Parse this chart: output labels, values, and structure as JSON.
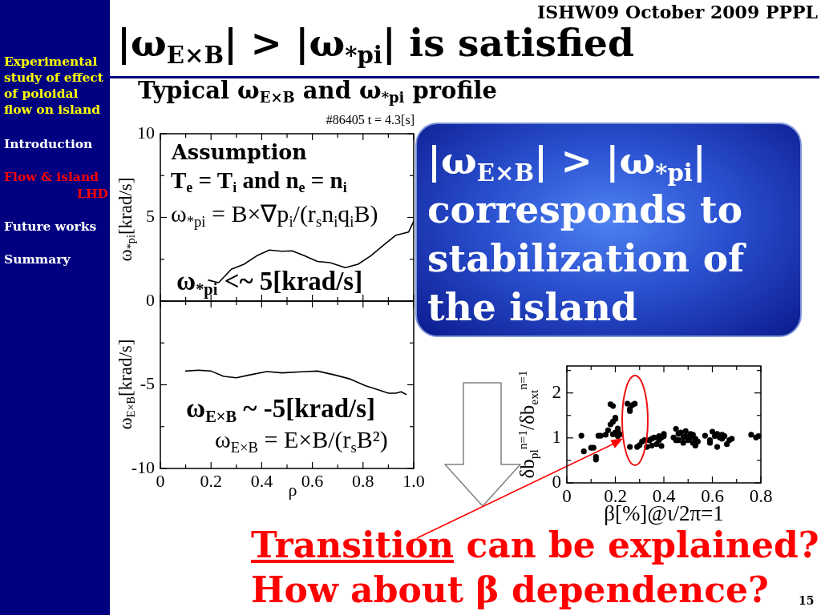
{
  "chart_data": [
    {
      "type": "other",
      "title": "|ω$_{E×B}$| > |ω$_{*pi}$| is satisfied",
      "annotations": [
        "ISHW09 October 2009 PPPL",
        "Experimental study of effect of poloidal flow on island",
        "Introduction",
        "Flow & island",
        "LHD",
        "Future works",
        "Summary",
        "|ω$_{E×B}$| > |ω$_{*pi}$| corresponds to stabilization of the island",
        "Transition can be explained?",
        "How about β dependence?",
        "15"
      ]
    },
    {
      "type": "line",
      "title": "Typical ω$_{E×B}$ and ω$_{*pi}$ profile",
      "subtitle": "#86405 t = 4.3[s]",
      "ylabel": "ω$_{*pi}$[krad/s]",
      "x": [
        0.19,
        0.23,
        0.28,
        0.33,
        0.38,
        0.43,
        0.48,
        0.52,
        0.57,
        0.62,
        0.67,
        0.73,
        0.78,
        0.83,
        0.88,
        0.93,
        0.98,
        1.0
      ],
      "series": [
        {
          "color": "#000000",
          "values": [
            1.25,
            1.1,
            1.9,
            2.2,
            2.7,
            3.05,
            2.98,
            3.0,
            2.7,
            2.37,
            2.3,
            2.0,
            2.2,
            2.7,
            3.33,
            3.94,
            4.13,
            4.77
          ]
        }
      ],
      "xlim": [
        0,
        1
      ],
      "xticks": [
        0,
        {
          "value": 0.1,
          "label": null
        },
        0.2,
        {
          "value": 0.3,
          "label": null
        },
        0.4,
        {
          "value": 0.5,
          "label": null
        },
        0.6,
        {
          "value": 0.7,
          "label": null
        },
        0.8,
        {
          "value": 0.9,
          "label": null
        },
        1
      ],
      "ylim": [
        0,
        10
      ],
      "yticks": [
        0,
        {
          "value": 2.5,
          "label": null
        },
        5,
        {
          "value": 7.5,
          "label": null
        },
        10
      ],
      "tick_labels": "y",
      "marker": "none",
      "line_style": "solid",
      "annotations": [
        "Assumption",
        "T$_{e}$ = T$_{i}$ and n$_{e}$ = n$_{i}$",
        "ω$_{*pi}$ = B×∇p$_{i}$/(r$_{s}$n$_{i}$q$_{i}$B)",
        "ω$_{*pi}$ <~ 5[krad/s]"
      ]
    },
    {
      "type": "line",
      "xlabel": "ρ",
      "ylabel": "ω$_{E×B}$[krad/s]",
      "x": [
        0.1,
        0.15,
        0.2,
        0.25,
        0.3,
        0.35,
        0.42,
        0.48,
        0.56,
        0.62,
        0.69,
        0.75,
        0.81,
        0.86,
        0.9,
        0.93,
        0.95,
        0.97
      ],
      "series": [
        {
          "color": "#000000",
          "values": [
            -4.18,
            -4.13,
            -4.18,
            -4.5,
            -4.58,
            -4.42,
            -4.21,
            -4.29,
            -4.22,
            -4.18,
            -4.42,
            -4.66,
            -5.06,
            -5.3,
            -5.5,
            -5.5,
            -5.42,
            -5.57
          ]
        }
      ],
      "xlim": [
        0,
        1
      ],
      "xticks": [
        0,
        {
          "value": 0.1,
          "label": null
        },
        0.2,
        {
          "value": 0.3,
          "label": null
        },
        0.4,
        {
          "value": 0.5,
          "label": null
        },
        0.6,
        {
          "value": 0.7,
          "label": null
        },
        0.8,
        {
          "value": 0.9,
          "label": null
        },
        {
          "value": 1,
          "label": "1.0"
        }
      ],
      "ylim": [
        -10,
        0
      ],
      "yticks": [
        -10,
        {
          "value": -7.5,
          "label": null
        },
        -5,
        {
          "value": -2.5,
          "label": null
        },
        {
          "value": 0,
          "label": null
        }
      ],
      "marker": "none",
      "line_style": "solid",
      "annotations": [
        "ω$_{E×B}$ ~ -5[krad/s]",
        "ω$_{E×B}$ = E×B/(r$_{s}$B²)"
      ]
    },
    {
      "type": "scatter",
      "xlabel": "β[%]@ι/2π=1",
      "ylabel": "δb$_{pl}$$^{n=1}$/δb$_{ext}$$^{n=1}$",
      "x": [
        0.06,
        0.07,
        0.1,
        0.11,
        0.12,
        0.12,
        0.13,
        0.14,
        0.16,
        0.17,
        0.18,
        0.18,
        0.19,
        0.19,
        0.2,
        0.2,
        0.19,
        0.2,
        0.21,
        0.21,
        0.21,
        0.22,
        0.25,
        0.26,
        0.26,
        0.27,
        0.28,
        0.26,
        0.29,
        0.3,
        0.31,
        0.32,
        0.33,
        0.34,
        0.35,
        0.35,
        0.36,
        0.37,
        0.38,
        0.38,
        0.39,
        0.39,
        0.4,
        0.4,
        0.44,
        0.45,
        0.45,
        0.46,
        0.46,
        0.47,
        0.48,
        0.48,
        0.49,
        0.49,
        0.5,
        0.51,
        0.51,
        0.52,
        0.52,
        0.53,
        0.53,
        0.54,
        0.57,
        0.59,
        0.59,
        0.6,
        0.61,
        0.62,
        0.62,
        0.63,
        0.64,
        0.64,
        0.65,
        0.66,
        0.67,
        0.68,
        0.76,
        0.78,
        0.79
      ],
      "series": [
        {
          "color": "#000000",
          "values": [
            1.05,
            0.7,
            0.78,
            0.78,
            0.58,
            0.52,
            1.05,
            1.05,
            1.07,
            1.17,
            1.3,
            1.75,
            1.71,
            1.36,
            1.45,
            1.42,
            1.08,
            1.12,
            1.17,
            1.21,
            1.04,
            1.08,
            1.76,
            1.64,
            1.6,
            1.73,
            1.76,
            0.8,
            0.8,
            0.84,
            0.92,
            0.95,
            0.8,
            0.95,
            0.98,
            0.83,
            1.01,
            0.86,
            0.95,
            1.04,
            0.82,
            1.01,
            1.09,
            1.04,
            1.01,
            0.95,
            1.2,
            1.09,
            0.95,
            1.12,
            1.01,
            0.89,
            1.15,
            1.04,
            0.95,
            1.09,
            1.01,
            0.89,
            1.07,
            0.98,
            0.83,
            0.92,
            1.05,
            0.95,
            0.89,
            1.14,
            1.04,
            1.09,
            0.8,
            1.01,
            1.07,
            0.98,
            1.04,
            0.86,
            0.95,
            0.98,
            1.07,
            1.01,
            1.04
          ]
        }
      ],
      "xlim": [
        0,
        0.8
      ],
      "xticks": [
        0,
        {
          "value": 0.1,
          "label": null
        },
        0.2,
        {
          "value": 0.3,
          "label": null
        },
        0.4,
        {
          "value": 0.5,
          "label": null
        },
        0.6,
        {
          "value": 0.7,
          "label": null
        },
        0.8
      ],
      "ylim": [
        0,
        2.6
      ],
      "yticks": [
        0,
        {
          "value": 0.5,
          "label": null
        },
        1,
        {
          "value": 1.5,
          "label": null
        },
        2,
        {
          "value": 2.5,
          "label": null
        }
      ],
      "marker": "circle"
    }
  ]
}
